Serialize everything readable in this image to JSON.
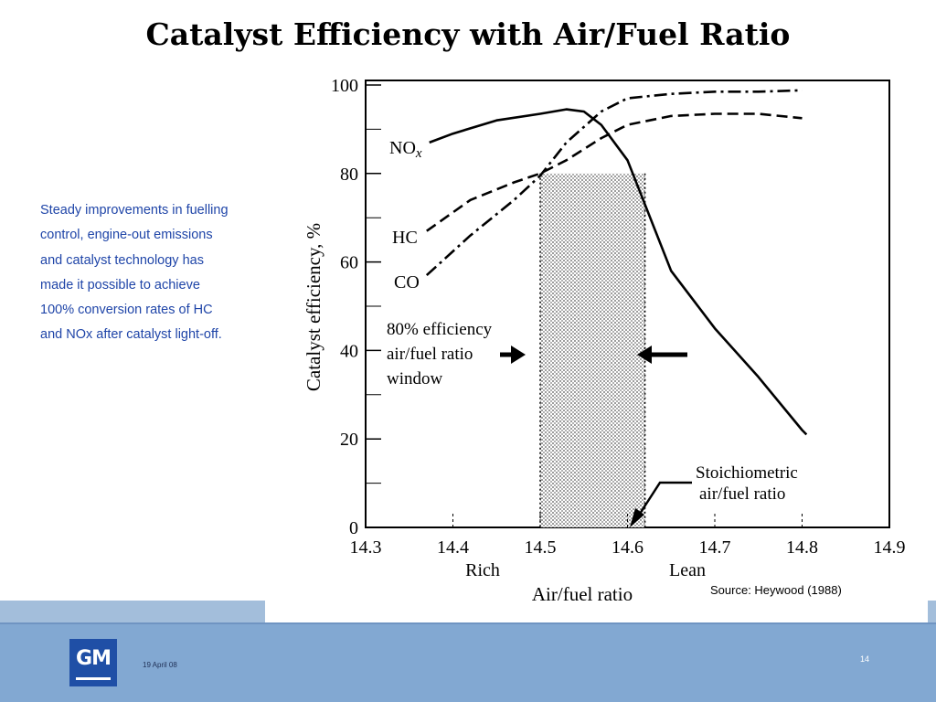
{
  "slide": {
    "title": "Catalyst Efficiency with Air/Fuel Ratio",
    "body_lines": [
      "Steady improvements in fuelling",
      "control, engine-out emissions",
      "and catalyst technology has",
      "made it possible to achieve",
      "100% conversion rates of HC",
      "and NOx after catalyst light-off."
    ],
    "source": "Source: Heywood (1988)",
    "footer": {
      "logo_text": "GM",
      "date": "19 April 08",
      "page": "14"
    }
  },
  "colors": {
    "body_text": "#1f45a8",
    "footer": "#82a8d2",
    "logo": "#1f4fa6"
  },
  "chart_data": {
    "type": "line",
    "title": "",
    "xlabel": "Air/fuel ratio",
    "ylabel": "Catalyst efficiency, %",
    "xlim": [
      14.3,
      14.9
    ],
    "ylim": [
      0,
      100
    ],
    "x_ticks": [
      "14.3",
      "14.4",
      "14.5",
      "14.6",
      "14.7",
      "14.8",
      "14.9"
    ],
    "y_ticks": [
      "0",
      "20",
      "40",
      "60",
      "80",
      "100"
    ],
    "x_sublabels": [
      "Rich",
      "Lean"
    ],
    "series": [
      {
        "name": "NO",
        "name_sub": "x",
        "style": "solid",
        "x": [
          14.373,
          14.4,
          14.45,
          14.5,
          14.53,
          14.55,
          14.57,
          14.6,
          14.62,
          14.65,
          14.7,
          14.75,
          14.8,
          14.805
        ],
        "y": [
          87,
          89,
          92,
          93.5,
          94.5,
          94,
          91,
          83,
          73,
          58,
          45,
          34,
          22,
          21
        ]
      },
      {
        "name": "HC",
        "style": "dashed",
        "x": [
          14.37,
          14.42,
          14.47,
          14.5,
          14.53,
          14.57,
          14.6,
          14.65,
          14.7,
          14.75,
          14.8
        ],
        "y": [
          67,
          74,
          78,
          80,
          83,
          88,
          91,
          93,
          93.5,
          93.5,
          92.5
        ]
      },
      {
        "name": "CO",
        "style": "dash-dot",
        "x": [
          14.37,
          14.42,
          14.47,
          14.5,
          14.53,
          14.57,
          14.6,
          14.65,
          14.7,
          14.75,
          14.8
        ],
        "y": [
          57,
          66,
          74,
          79.5,
          87,
          94,
          97,
          98,
          98.5,
          98.5,
          98.8
        ]
      }
    ],
    "window": {
      "x0": 14.5,
      "x1": 14.62
    },
    "annotations": {
      "window_label": [
        "80% efficiency",
        "air/fuel ratio",
        "window"
      ],
      "stoich_label": [
        "Stoichiometric",
        "air/fuel ratio"
      ]
    },
    "grid": false,
    "legend": "none"
  }
}
